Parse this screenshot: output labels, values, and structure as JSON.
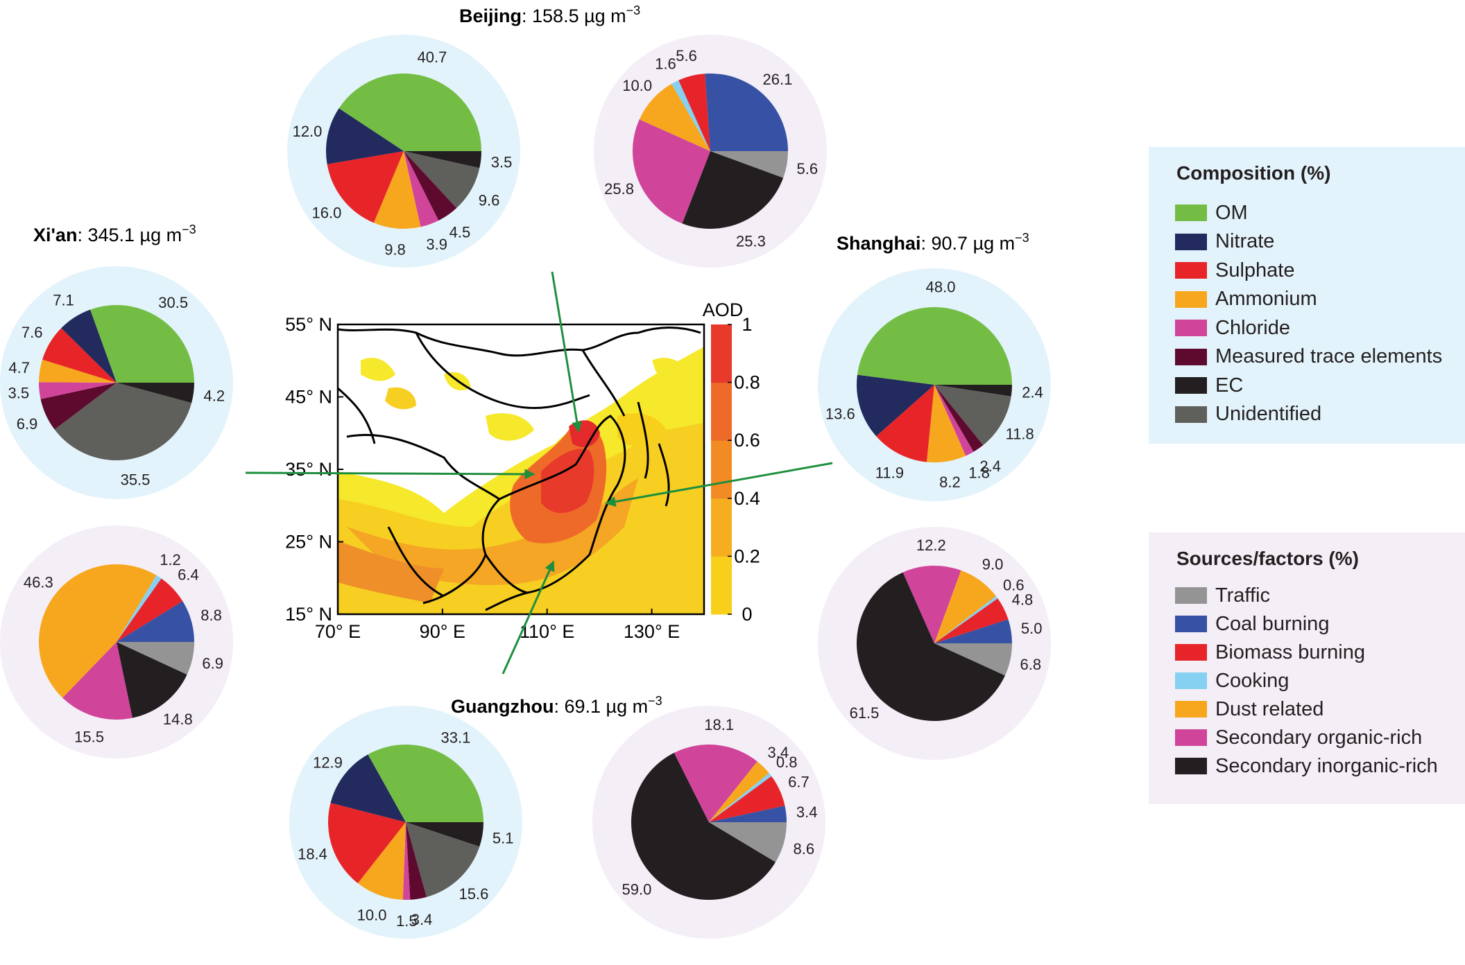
{
  "colors": {
    "composition_bg": "#e3f3fb",
    "sources_bg": "#f4eef6",
    "arrow": "#1e8f3e",
    "OM": "#74bd45",
    "Nitrate": "#222a5e",
    "Sulphate": "#e72528",
    "Ammonium": "#f7a71e",
    "Chloride": "#d0449a",
    "Measured trace elements": "#5e0a2e",
    "EC": "#231f20",
    "Unidentified": "#5f5f5c",
    "Traffic": "#949494",
    "Coal burning": "#3752a4",
    "Biomass burning": "#e62429",
    "Cooking": "#86d1f2",
    "Dust related": "#f7a71e",
    "Secondary organic-rich": "#d0449a",
    "Secondary inorganic-rich": "#231f20"
  },
  "legends": {
    "composition": {
      "title": "Composition (%)",
      "items": [
        "OM",
        "Nitrate",
        "Sulphate",
        "Ammonium",
        "Chloride",
        "Measured trace elements",
        "EC",
        "Unidentified"
      ]
    },
    "sources": {
      "title": "Sources/factors (%)",
      "items": [
        "Traffic",
        "Coal burning",
        "Biomass burning",
        "Cooking",
        "Dust related",
        "Secondary organic-rich",
        "Secondary inorganic-rich"
      ]
    }
  },
  "chart_data": [
    {
      "type": "pie",
      "id": "beijing-composition",
      "city": "Beijing",
      "title_value": ": 158.5 µg m",
      "unit_sup": "−3",
      "categories": [
        "OM",
        "EC",
        "Unidentified",
        "Measured trace elements",
        "Chloride",
        "Ammonium",
        "Sulphate",
        "Nitrate"
      ],
      "values": [
        40.7,
        3.5,
        9.6,
        4.5,
        3.9,
        9.8,
        16.0,
        12.0
      ],
      "labels": [
        "40.7",
        "3.5",
        "9.6",
        "4.5",
        "3.9",
        "9.8",
        "16.0",
        "12.0"
      ]
    },
    {
      "type": "pie",
      "id": "beijing-sources",
      "categories": [
        "Traffic",
        "Secondary inorganic-rich",
        "Secondary organic-rich",
        "Dust related",
        "Cooking",
        "Biomass burning",
        "Coal burning"
      ],
      "values": [
        5.6,
        25.3,
        25.8,
        10.0,
        1.6,
        5.6,
        26.1
      ],
      "labels": [
        "5.6",
        "25.3",
        "25.8",
        "10.0",
        "1.6",
        "5.6",
        "26.1"
      ]
    },
    {
      "type": "pie",
      "id": "xian-composition",
      "city": "Xi'an",
      "title_value": ": 345.1 µg m",
      "unit_sup": "−3",
      "categories": [
        "EC",
        "Unidentified",
        "Measured trace elements",
        "Chloride",
        "Ammonium",
        "Sulphate",
        "Nitrate",
        "OM"
      ],
      "values": [
        4.2,
        35.5,
        6.9,
        3.5,
        4.7,
        7.6,
        7.1,
        30.5
      ],
      "labels": [
        "4.2",
        "35.5",
        "6.9",
        "3.5",
        "4.7",
        "7.6",
        "7.1",
        "30.5"
      ]
    },
    {
      "type": "pie",
      "id": "xian-sources",
      "categories": [
        "Traffic",
        "Secondary inorganic-rich",
        "Secondary organic-rich",
        "Dust related",
        "Cooking",
        "Biomass burning",
        "Coal burning"
      ],
      "values": [
        6.9,
        14.8,
        15.5,
        46.3,
        1.2,
        6.4,
        8.8
      ],
      "labels": [
        "6.9",
        "14.8",
        "15.5",
        "46.3",
        "1.2",
        "6.4",
        "8.8"
      ]
    },
    {
      "type": "pie",
      "id": "shanghai-composition",
      "city": "Shanghai",
      "title_value": ": 90.7 µg m",
      "unit_sup": "−3",
      "categories": [
        "EC",
        "Unidentified",
        "Measured trace elements",
        "Chloride",
        "Ammonium",
        "Sulphate",
        "Nitrate",
        "OM"
      ],
      "values": [
        2.4,
        11.8,
        2.4,
        1.8,
        8.2,
        11.9,
        13.6,
        48.0
      ],
      "labels": [
        "2.4",
        "11.8",
        "2.4",
        "1.8",
        "8.2",
        "11.9",
        "13.6",
        "48.0"
      ]
    },
    {
      "type": "pie",
      "id": "shanghai-sources",
      "categories": [
        "Traffic",
        "Secondary inorganic-rich",
        "Secondary organic-rich",
        "Dust related",
        "Cooking",
        "Biomass burning",
        "Coal burning"
      ],
      "values": [
        6.8,
        61.5,
        12.2,
        9.0,
        0.6,
        4.8,
        5.0
      ],
      "labels": [
        "6.8",
        "61.5",
        "12.2",
        "9.0",
        "0.6",
        "4.8",
        "5.0"
      ]
    },
    {
      "type": "pie",
      "id": "guangzhou-composition",
      "city": "Guangzhou",
      "title_value": ": 69.1 µg m",
      "unit_sup": "−3",
      "categories": [
        "EC",
        "Unidentified",
        "Measured trace elements",
        "Chloride",
        "Ammonium",
        "Sulphate",
        "Nitrate",
        "OM"
      ],
      "values": [
        5.1,
        15.6,
        3.4,
        1.5,
        10.0,
        18.4,
        12.9,
        33.1
      ],
      "labels": [
        "5.1",
        "15.6",
        "3.4",
        "1.5",
        "10.0",
        "18.4",
        "12.9",
        "33.1"
      ]
    },
    {
      "type": "pie",
      "id": "guangzhou-sources",
      "categories": [
        "Traffic",
        "Secondary inorganic-rich",
        "Secondary organic-rich",
        "Dust related",
        "Cooking",
        "Biomass burning",
        "Coal burning"
      ],
      "values": [
        8.6,
        59.0,
        18.1,
        3.4,
        0.8,
        6.7,
        3.4
      ],
      "labels": [
        "8.6",
        "59.0",
        "18.1",
        "3.4",
        "0.8",
        "6.7",
        "3.4"
      ]
    },
    {
      "type": "heatmap",
      "id": "aod-map",
      "colorbar_title": "AOD",
      "colorbar_ticks": [
        "0",
        "0.2",
        "0.4",
        "0.6",
        "0.8",
        "1"
      ],
      "colorbar_colors": [
        "#f6ee1d",
        "#f8cf1b",
        "#f6ae20",
        "#f28b23",
        "#ee6a29",
        "#e73a2b"
      ],
      "x_ticks": [
        "70° E",
        "90° E",
        "110° E",
        "130° E"
      ],
      "y_ticks": [
        "55° N",
        "45° N",
        "35° N",
        "25° N",
        "15° N"
      ],
      "xlim": [
        70,
        140
      ],
      "ylim": [
        15,
        55
      ]
    }
  ]
}
